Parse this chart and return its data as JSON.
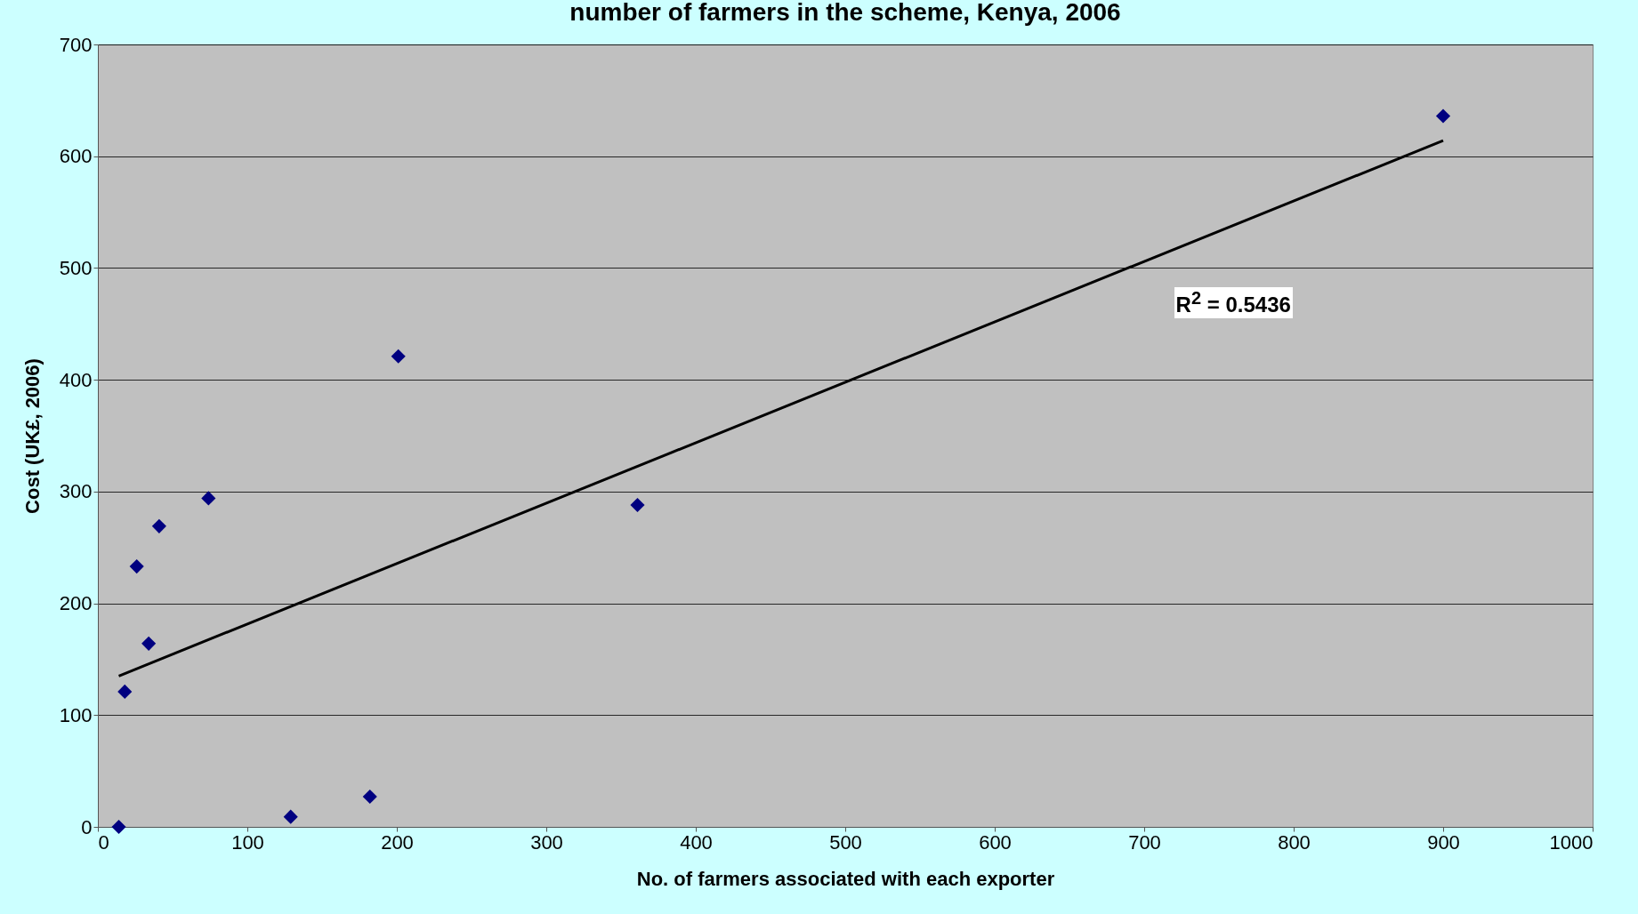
{
  "chart_data": {
    "type": "scatter",
    "title": "number of farmers in the scheme, Kenya, 2006",
    "xlabel": "No. of farmers associated with each exporter",
    "ylabel": "Cost (UK£, 2006)",
    "series": [
      {
        "color": "#000080",
        "x": [
          14,
          18,
          26,
          34,
          41,
          74,
          129,
          182,
          201,
          361,
          900
        ],
        "values": [
          0,
          121,
          233,
          164,
          269,
          294,
          9,
          27,
          421,
          288,
          636
        ]
      },
      {
        "type": "line",
        "marker": "none",
        "color": "#000000",
        "x": [
          14,
          900
        ],
        "values": [
          135,
          614
        ]
      }
    ],
    "annotations": [
      "R$^{2}$ = 0.5436"
    ],
    "xlim": [
      0,
      1000
    ],
    "xticks": [
      0,
      100,
      200,
      300,
      400,
      500,
      600,
      700,
      800,
      900,
      1000
    ],
    "ylim": [
      0,
      700
    ],
    "yticks": [
      0,
      100,
      200,
      300,
      400,
      500,
      600,
      700
    ],
    "grid": "y",
    "marker": "diamond"
  }
}
